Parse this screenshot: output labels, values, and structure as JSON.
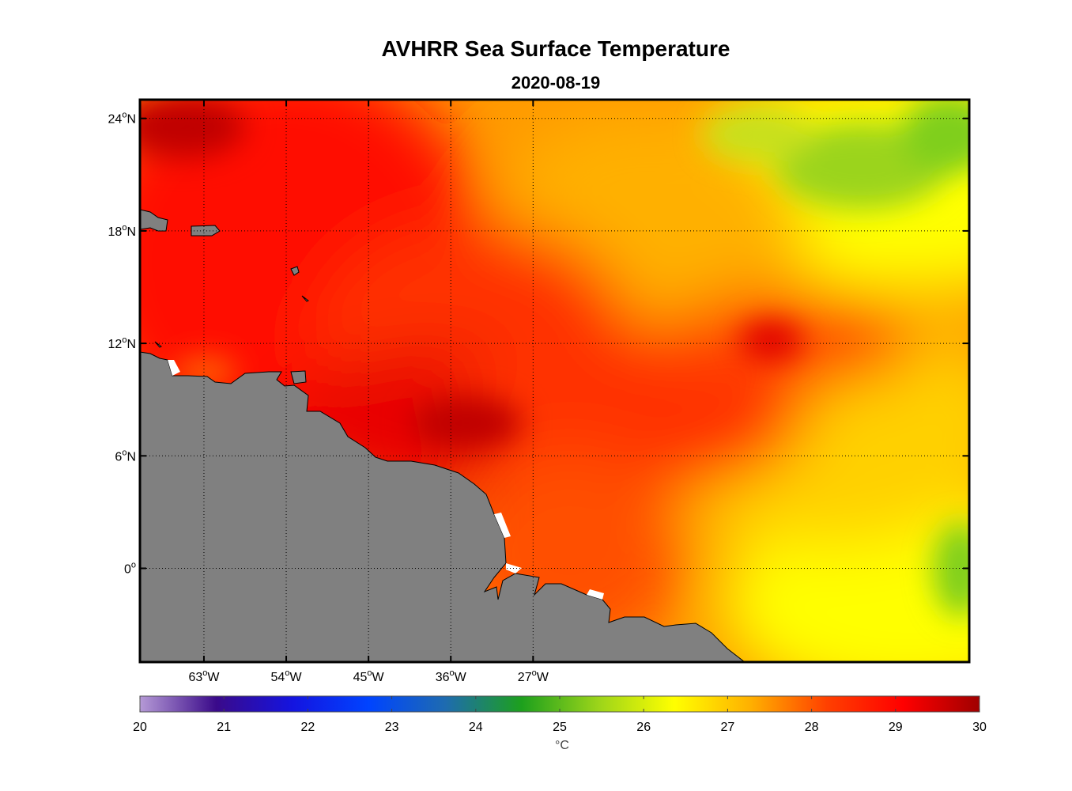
{
  "title": "AVHRR Sea Surface Temperature",
  "subtitle": "2020-08-19",
  "map": {
    "lon_range": [
      -70,
      20.7
    ],
    "lat_range": [
      -5,
      25
    ],
    "lon_ticks": [
      {
        "value": -63,
        "num": "63",
        "suffix": "W"
      },
      {
        "value": -54,
        "num": "54",
        "suffix": "W"
      },
      {
        "value": -45,
        "num": "45",
        "suffix": "W"
      },
      {
        "value": -36,
        "num": "36",
        "suffix": "W"
      },
      {
        "value": -27,
        "num": "27",
        "suffix": "W"
      }
    ],
    "lat_ticks": [
      {
        "value": 24,
        "num": "24",
        "suffix": "N"
      },
      {
        "value": 18,
        "num": "18",
        "suffix": "N"
      },
      {
        "value": 12,
        "num": "12",
        "suffix": "N"
      },
      {
        "value": 6,
        "num": "6",
        "suffix": "N"
      },
      {
        "value": 0,
        "num": "0",
        "suffix": ""
      }
    ],
    "degree_symbol": "o",
    "land_color": "#808080",
    "grid": "dotted"
  },
  "colorbar": {
    "ticks": [
      "20",
      "21",
      "22",
      "23",
      "24",
      "25",
      "26",
      "27",
      "28",
      "29",
      "30"
    ],
    "unit": "°C",
    "range": [
      20,
      30
    ],
    "colors": [
      "#b59ad6",
      "#3a0a8a",
      "#1414e0",
      "#0044ff",
      "#1e6bb0",
      "#1da01d",
      "#9bd41a",
      "#ffff00",
      "#ffb000",
      "#ff4000",
      "#ff0000",
      "#a00000"
    ]
  }
}
